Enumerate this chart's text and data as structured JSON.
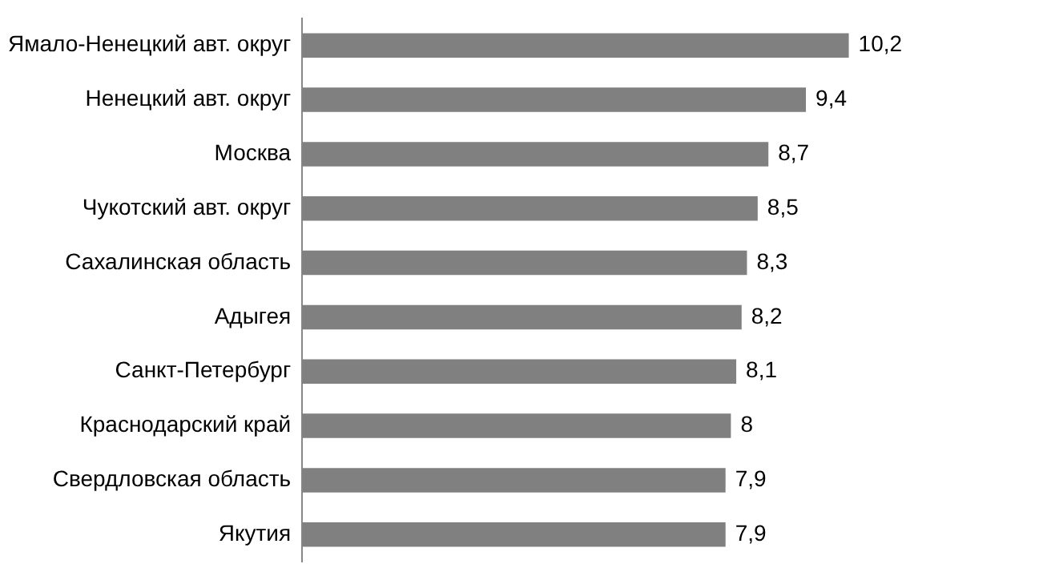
{
  "chart_data": {
    "type": "bar",
    "orientation": "horizontal",
    "categories": [
      "Ямало-Ненецкий авт. округ",
      "Ненецкий авт. округ",
      "Москва",
      "Чукотский авт. округ",
      "Сахалинская область",
      "Адыгея",
      "Санкт-Петербург",
      "Краснодарский край",
      "Свердловская область",
      "Якутия"
    ],
    "values": [
      10.2,
      9.4,
      8.7,
      8.5,
      8.3,
      8.2,
      8.1,
      8,
      7.9,
      7.9
    ],
    "value_labels": [
      "10,2",
      "9,4",
      "8,7",
      "8,5",
      "8,3",
      "8,2",
      "8,1",
      "8",
      "7,9",
      "7,9"
    ],
    "color": "#808080",
    "legend": false
  }
}
